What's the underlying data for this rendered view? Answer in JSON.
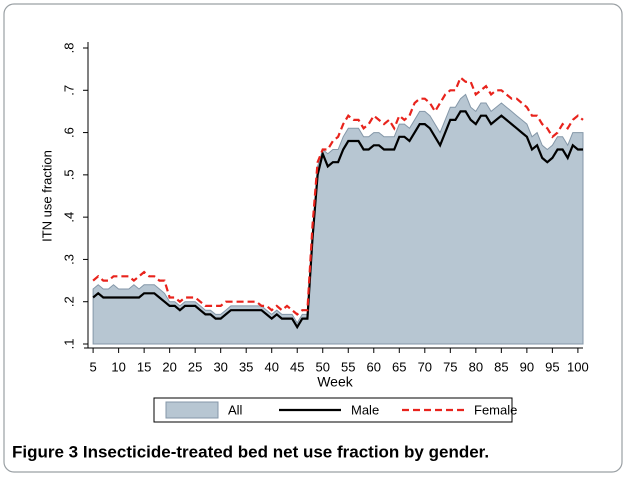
{
  "chart_data": {
    "type": "line",
    "ylabel": "ITN use fraction",
    "xlabel": "Week",
    "caption": "Figure 3 Insecticide-treated bed net use fraction by gender.",
    "x": [
      5,
      6,
      7,
      8,
      9,
      10,
      11,
      12,
      13,
      14,
      15,
      16,
      17,
      18,
      19,
      20,
      21,
      22,
      23,
      24,
      25,
      26,
      27,
      28,
      29,
      30,
      31,
      32,
      33,
      34,
      35,
      36,
      37,
      38,
      39,
      40,
      41,
      42,
      43,
      44,
      45,
      46,
      47,
      48,
      49,
      50,
      51,
      52,
      53,
      54,
      55,
      56,
      57,
      58,
      59,
      60,
      61,
      62,
      63,
      64,
      65,
      66,
      67,
      68,
      69,
      70,
      71,
      72,
      73,
      74,
      75,
      76,
      77,
      78,
      79,
      80,
      81,
      82,
      83,
      84,
      85,
      86,
      87,
      88,
      89,
      90,
      91,
      92,
      93,
      94,
      95,
      96,
      97,
      98,
      99,
      100,
      101
    ],
    "series": [
      {
        "name": "All",
        "kind": "area",
        "color": "#b7c6d2",
        "edge": "#8497a8",
        "values": [
          0.23,
          0.24,
          0.23,
          0.23,
          0.24,
          0.23,
          0.23,
          0.23,
          0.24,
          0.23,
          0.24,
          0.24,
          0.24,
          0.23,
          0.22,
          0.2,
          0.2,
          0.19,
          0.2,
          0.2,
          0.2,
          0.19,
          0.18,
          0.18,
          0.17,
          0.17,
          0.18,
          0.19,
          0.19,
          0.19,
          0.19,
          0.19,
          0.19,
          0.19,
          0.18,
          0.17,
          0.18,
          0.17,
          0.17,
          0.17,
          0.15,
          0.17,
          0.17,
          0.36,
          0.52,
          0.56,
          0.55,
          0.56,
          0.56,
          0.59,
          0.61,
          0.61,
          0.61,
          0.59,
          0.59,
          0.6,
          0.6,
          0.59,
          0.59,
          0.59,
          0.62,
          0.62,
          0.61,
          0.63,
          0.65,
          0.65,
          0.64,
          0.62,
          0.6,
          0.63,
          0.66,
          0.66,
          0.68,
          0.69,
          0.66,
          0.65,
          0.67,
          0.67,
          0.65,
          0.66,
          0.67,
          0.66,
          0.65,
          0.64,
          0.63,
          0.62,
          0.59,
          0.6,
          0.57,
          0.56,
          0.57,
          0.59,
          0.59,
          0.57,
          0.6,
          0.6,
          0.6
        ]
      },
      {
        "name": "Male",
        "kind": "line",
        "color": "#000000",
        "dashed": false,
        "values": [
          0.21,
          0.22,
          0.21,
          0.21,
          0.21,
          0.21,
          0.21,
          0.21,
          0.21,
          0.21,
          0.22,
          0.22,
          0.22,
          0.21,
          0.2,
          0.19,
          0.19,
          0.18,
          0.19,
          0.19,
          0.19,
          0.18,
          0.17,
          0.17,
          0.16,
          0.16,
          0.17,
          0.18,
          0.18,
          0.18,
          0.18,
          0.18,
          0.18,
          0.18,
          0.17,
          0.16,
          0.17,
          0.16,
          0.16,
          0.16,
          0.14,
          0.16,
          0.16,
          0.35,
          0.5,
          0.55,
          0.52,
          0.53,
          0.53,
          0.56,
          0.58,
          0.58,
          0.58,
          0.56,
          0.56,
          0.57,
          0.57,
          0.56,
          0.56,
          0.56,
          0.59,
          0.59,
          0.58,
          0.6,
          0.62,
          0.62,
          0.61,
          0.59,
          0.57,
          0.6,
          0.63,
          0.63,
          0.65,
          0.65,
          0.63,
          0.62,
          0.64,
          0.64,
          0.62,
          0.63,
          0.64,
          0.63,
          0.62,
          0.61,
          0.6,
          0.59,
          0.56,
          0.57,
          0.54,
          0.53,
          0.54,
          0.56,
          0.56,
          0.54,
          0.57,
          0.56,
          0.56
        ]
      },
      {
        "name": "Female",
        "kind": "line",
        "color": "#e8231c",
        "dashed": true,
        "values": [
          0.25,
          0.26,
          0.25,
          0.25,
          0.26,
          0.26,
          0.26,
          0.26,
          0.25,
          0.26,
          0.27,
          0.26,
          0.26,
          0.25,
          0.25,
          0.21,
          0.21,
          0.2,
          0.21,
          0.21,
          0.21,
          0.2,
          0.19,
          0.19,
          0.19,
          0.19,
          0.2,
          0.2,
          0.2,
          0.2,
          0.2,
          0.2,
          0.2,
          0.19,
          0.19,
          0.18,
          0.19,
          0.18,
          0.19,
          0.18,
          0.17,
          0.18,
          0.18,
          0.38,
          0.53,
          0.56,
          0.56,
          0.58,
          0.59,
          0.62,
          0.64,
          0.63,
          0.63,
          0.61,
          0.62,
          0.64,
          0.63,
          0.62,
          0.63,
          0.61,
          0.64,
          0.63,
          0.64,
          0.67,
          0.68,
          0.68,
          0.67,
          0.65,
          0.67,
          0.69,
          0.7,
          0.7,
          0.73,
          0.72,
          0.72,
          0.69,
          0.7,
          0.71,
          0.69,
          0.7,
          0.7,
          0.69,
          0.68,
          0.68,
          0.67,
          0.66,
          0.64,
          0.64,
          0.62,
          0.61,
          0.59,
          0.6,
          0.62,
          0.61,
          0.63,
          0.64,
          0.63
        ]
      }
    ],
    "xlim": [
      4,
      101
    ],
    "ylim": [
      0.1,
      0.8
    ],
    "xticks": [
      5,
      10,
      15,
      20,
      25,
      30,
      35,
      40,
      45,
      50,
      55,
      60,
      65,
      70,
      75,
      80,
      85,
      90,
      95,
      100
    ],
    "yticks": [
      {
        "value": 0.1,
        "label": ".1"
      },
      {
        "value": 0.2,
        "label": ".2"
      },
      {
        "value": 0.3,
        "label": ".3"
      },
      {
        "value": 0.4,
        "label": ".4"
      },
      {
        "value": 0.5,
        "label": ".5"
      },
      {
        "value": 0.6,
        "label": ".6"
      },
      {
        "value": 0.7,
        "label": ".7"
      },
      {
        "value": 0.8,
        "label": ".8"
      }
    ],
    "grid": false,
    "legend": "bottom"
  }
}
